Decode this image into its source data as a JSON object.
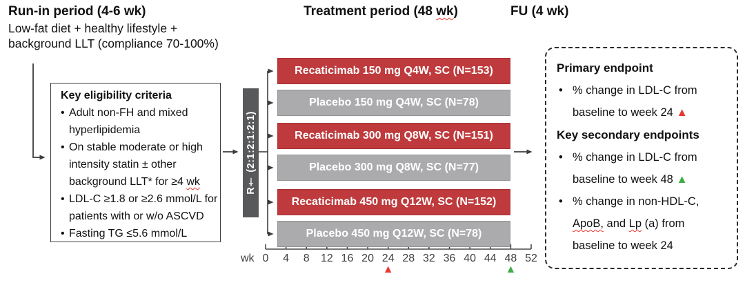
{
  "colors": {
    "active_arm": "#BE3A3C",
    "placebo_arm": "#ABABAD",
    "randomization_box": "#58595B",
    "marker_red": "#E8392E",
    "marker_green": "#3FAE49",
    "squiggle_red": "#E8392E"
  },
  "headers": {
    "run_in": {
      "title": "Run-in period (4-6 wk)",
      "line1": "Low-fat diet + healthy lifestyle +",
      "line2": "background LLT (compliance 70-100%)"
    },
    "treatment": {
      "pre": "Treatment period (48",
      "wk": "wk",
      "post": ")"
    },
    "follow_up": "FU (4 wk)"
  },
  "eligibility": {
    "title": "Key eligibility criteria",
    "bullets": [
      {
        "line1": "Adult non-FH and mixed",
        "line2": "hyperlipidemia"
      },
      {
        "line1": "On stable moderate or high",
        "line2": "intensity statin ± other",
        "line3_pre": "background LLT* for ≥4",
        "line3_sq": "wk"
      },
      {
        "line1": "LDL-C ≥1.8 or ≥2.6 mmol/L for",
        "line2": "patients with or w/o ASCVD"
      },
      {
        "line1": "Fasting TG ≤5.6 mmol/L"
      }
    ]
  },
  "randomization": {
    "label": "R† (2:1:2:1:2:1)"
  },
  "arms": [
    {
      "label": "Recaticimab 150 mg Q4W, SC (N=153)",
      "type": "recaticimab"
    },
    {
      "label": "Placebo 150 mg Q4W, SC (N=78)",
      "type": "placebo"
    },
    {
      "label": "Recaticimab 300 mg Q8W, SC (N=151)",
      "type": "recaticimab"
    },
    {
      "label": "Placebo 300 mg Q8W, SC (N=77)",
      "type": "placebo"
    },
    {
      "label": "Recaticimab 450 mg Q12W, SC (N=152)",
      "type": "recaticimab"
    },
    {
      "label": "Placebo 450 mg Q12W, SC (N=78)",
      "type": "placebo"
    }
  ],
  "week_axis": {
    "unit_label": "wk",
    "ticks": [
      "0",
      "4",
      "8",
      "12",
      "16",
      "20",
      "24",
      "28",
      "32",
      "36",
      "40",
      "44",
      "48",
      "52"
    ],
    "markers": [
      {
        "tick_index": 6,
        "week": "24",
        "symbol": "▲",
        "color": "#E8392E",
        "name": "primary-endpoint-week-marker"
      },
      {
        "tick_index": 12,
        "week": "48",
        "symbol": "▲",
        "color": "#3FAE49",
        "name": "secondary-endpoint-week-marker"
      }
    ]
  },
  "endpoints": {
    "primary_title": "Primary endpoint",
    "primary": {
      "line1": "% change in LDL-C from",
      "line2": "baseline to week 24",
      "marker": "▲"
    },
    "secondary_title": "Key secondary endpoints",
    "secondary1": {
      "line1": "% change in LDL-C from",
      "line2": "baseline to week 48",
      "marker": "▲"
    },
    "secondary2": {
      "line1": "% change in non-HDL-C,",
      "line2_sq1": "ApoB,",
      "line2_mid": "and",
      "line2_sq2": "Lp",
      "line2_post": "(a) from",
      "line3": "baseline to week 24"
    }
  }
}
